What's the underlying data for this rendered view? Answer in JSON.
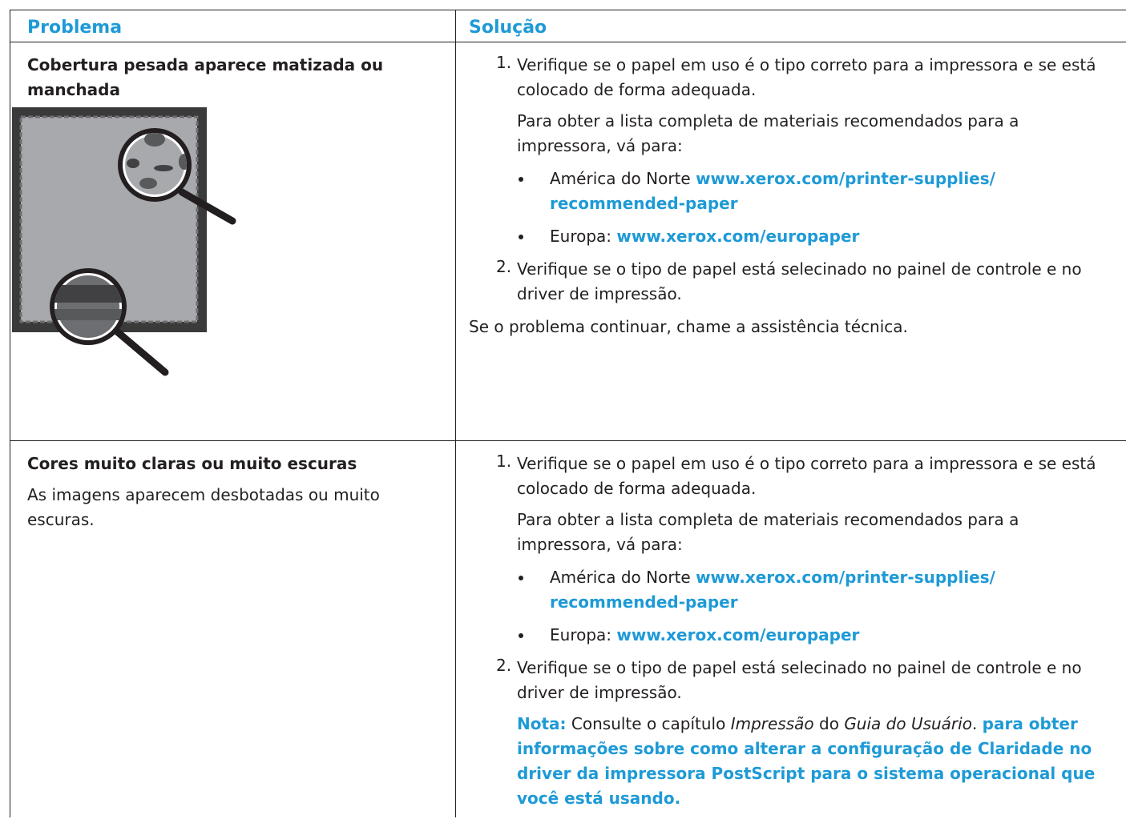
{
  "table": {
    "header": [
      "Problema",
      "Solução"
    ],
    "rows": [
      {
        "problem": {
          "title": "Cobertura pesada aparece matizada ou manchada"
        },
        "solution": {
          "steps": [
            {
              "number": "1.",
              "text": "Verifique se o papel em uso é o tipo correto para a impressora e se está colocado de forma adequada.",
              "detail": "Para obter a lista completa de materiais recomendados para a impressora, vá para:",
              "links": [
                {
                  "region": "América do Norte",
                  "url_lines": [
                    "www.xerox.com/printer-supplies/",
                    "recommended-paper"
                  ]
                },
                {
                  "region": "Europa:",
                  "url_lines": [
                    "www.xerox.com/europaper"
                  ]
                }
              ]
            },
            {
              "number": "2.",
              "text": "Verifique se o tipo de papel está selecinado no painel de controle e no driver de impressão."
            }
          ],
          "footer": "Se o problema continuar, chame a assistência técnica."
        }
      },
      {
        "problem": {
          "title": "Cores muito claras ou muito escuras",
          "description": "As imagens aparecem desbotadas ou muito escuras."
        },
        "solution": {
          "steps": [
            {
              "number": "1.",
              "text": "Verifique se o papel em uso é o tipo correto para a impressora e se está colocado de forma adequada.",
              "detail": "Para obter a lista completa de materiais recomendados para a impressora, vá para:",
              "links": [
                {
                  "region": "América do Norte",
                  "url_lines": [
                    "www.xerox.com/printer-supplies/",
                    "recommended-paper"
                  ]
                },
                {
                  "region": "Europa:",
                  "url_lines": [
                    "www.xerox.com/europaper"
                  ]
                }
              ]
            },
            {
              "number": "2.",
              "text": "Verifique se o tipo de papel está selecinado no painel de controle e no driver de impressão.",
              "note": {
                "label": "Nota:",
                "parts": [
                  "Consulte o capítulo ",
                  "Impressão",
                  " do ",
                  "Guia do Usuário",
                  "."
                ],
                "link_text": "para obter informações sobre como alterar a configuração de Claridade no driver da impressora PostScript para o sistema operacional que você está usando."
              }
            }
          ]
        }
      }
    ]
  }
}
